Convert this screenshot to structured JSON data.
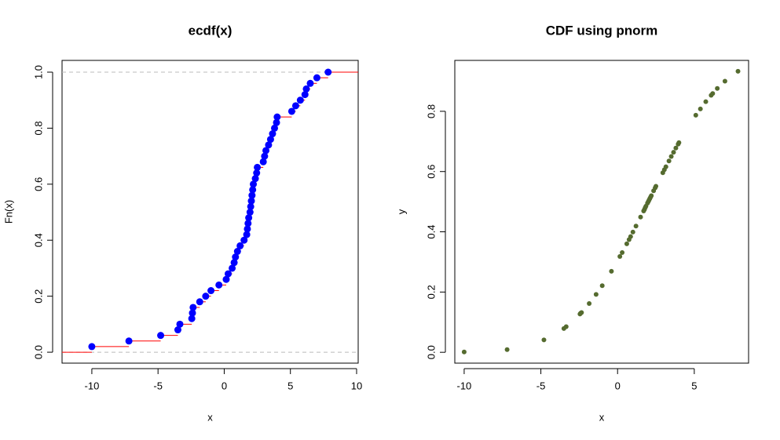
{
  "chart_data": [
    {
      "type": "step",
      "title": "ecdf(x)",
      "xlabel": "x",
      "ylabel": "Fn(x)",
      "x": [
        -10,
        -7.2,
        -4.8,
        -3.5,
        -3.35,
        -2.45,
        -2.4,
        -2.35,
        -1.85,
        -1.4,
        -1.0,
        -0.4,
        0.15,
        0.3,
        0.6,
        0.75,
        0.85,
        1.0,
        1.2,
        1.5,
        1.7,
        1.75,
        1.8,
        1.85,
        1.95,
        2.0,
        2.05,
        2.1,
        2.15,
        2.2,
        2.35,
        2.45,
        2.5,
        2.95,
        3.05,
        3.15,
        3.35,
        3.5,
        3.65,
        3.8,
        3.95,
        4.0,
        5.1,
        5.4,
        5.75,
        6.1,
        6.2,
        6.5,
        7.0,
        7.85
      ],
      "values": [
        0.02,
        0.04,
        0.06,
        0.08,
        0.1,
        0.12,
        0.14,
        0.16,
        0.18,
        0.2,
        0.22,
        0.24,
        0.26,
        0.28,
        0.3,
        0.32,
        0.34,
        0.36,
        0.38,
        0.4,
        0.42,
        0.44,
        0.46,
        0.48,
        0.5,
        0.52,
        0.54,
        0.56,
        0.58,
        0.6,
        0.62,
        0.64,
        0.66,
        0.68,
        0.7,
        0.72,
        0.74,
        0.76,
        0.78,
        0.8,
        0.82,
        0.84,
        0.86,
        0.88,
        0.9,
        0.92,
        0.94,
        0.96,
        0.98,
        1.0
      ],
      "color": "#0000ff",
      "line_color": "#ff0000",
      "reference_lines": [
        0,
        1
      ],
      "xlim": [
        -12.25,
        10.12
      ],
      "ylim": [
        -0.039,
        1.042
      ],
      "xticks": [
        -10,
        -5,
        0,
        5,
        10
      ],
      "yticks": [
        {
          "value": 0,
          "label": "0.0"
        },
        0.2,
        0.4,
        0.6,
        0.8,
        {
          "value": 1,
          "label": "1.0"
        }
      ]
    },
    {
      "type": "scatter",
      "title": "CDF using pnorm",
      "xlabel": "x",
      "ylabel": "y",
      "x": [
        -10,
        -7.2,
        -4.8,
        -3.5,
        -3.35,
        -2.45,
        -2.4,
        -2.35,
        -1.85,
        -1.4,
        -1.0,
        -0.4,
        0.15,
        0.3,
        0.6,
        0.75,
        0.85,
        1.0,
        1.2,
        1.5,
        1.7,
        1.75,
        1.8,
        1.85,
        1.95,
        2.0,
        2.05,
        2.1,
        2.15,
        2.2,
        2.35,
        2.45,
        2.5,
        2.95,
        3.05,
        3.15,
        3.35,
        3.5,
        3.65,
        3.8,
        3.95,
        4.0,
        5.1,
        5.4,
        5.75,
        6.1,
        6.2,
        6.5,
        7.0,
        7.85
      ],
      "values": [
        0.001,
        0.009,
        0.041,
        0.079,
        0.085,
        0.127,
        0.13,
        0.132,
        0.162,
        0.192,
        0.221,
        0.269,
        0.318,
        0.331,
        0.36,
        0.374,
        0.384,
        0.399,
        0.419,
        0.449,
        0.469,
        0.474,
        0.48,
        0.485,
        0.495,
        0.5,
        0.505,
        0.51,
        0.515,
        0.52,
        0.536,
        0.546,
        0.551,
        0.596,
        0.606,
        0.616,
        0.635,
        0.65,
        0.664,
        0.678,
        0.691,
        0.696,
        0.787,
        0.808,
        0.832,
        0.853,
        0.859,
        0.876,
        0.9,
        0.933
      ],
      "color": "#556b2f",
      "xlim": [
        -10.61,
        8.54
      ],
      "ylim": [
        -0.036,
        0.969
      ],
      "xticks": [
        -10,
        -5,
        0,
        5
      ],
      "yticks": [
        {
          "value": 0,
          "label": "0.0"
        },
        0.2,
        0.4,
        0.6,
        0.8
      ]
    }
  ]
}
